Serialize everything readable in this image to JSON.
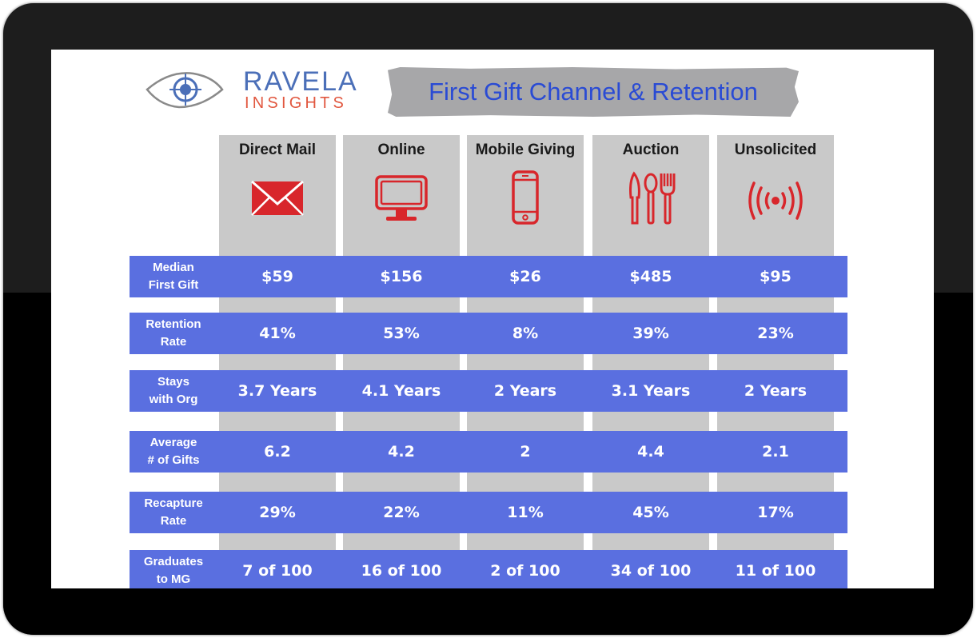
{
  "brand": {
    "line1": "RAVELA",
    "line2": "INSIGHTS"
  },
  "title": "First Gift Channel & Retention",
  "columns": [
    {
      "label": "Direct Mail",
      "icon": "envelope-icon"
    },
    {
      "label": "Online",
      "icon": "monitor-icon"
    },
    {
      "label": "Mobile Giving",
      "icon": "mobile-phone-icon"
    },
    {
      "label": "Auction",
      "icon": "cutlery-icon"
    },
    {
      "label": "Unsolicited",
      "icon": "broadcast-icon"
    }
  ],
  "rows": [
    {
      "label": [
        "Median",
        "First Gift"
      ],
      "values": [
        "$59",
        "$156",
        "$26",
        "$485",
        "$95"
      ]
    },
    {
      "label": [
        "Retention",
        "Rate"
      ],
      "values": [
        "41%",
        "53%",
        "8%",
        "39%",
        "23%"
      ]
    },
    {
      "label": [
        "Stays",
        "with Org"
      ],
      "values": [
        "3.7 Years",
        "4.1 Years",
        "2 Years",
        "3.1 Years",
        "2 Years"
      ]
    },
    {
      "label": [
        "Average",
        "# of Gifts"
      ],
      "values": [
        "6.2",
        "4.2",
        "2",
        "4.4",
        "2.1"
      ]
    },
    {
      "label": [
        "Recapture",
        "Rate"
      ],
      "values": [
        "29%",
        "22%",
        "11%",
        "45%",
        "17%"
      ]
    },
    {
      "label": [
        "Graduates",
        "to MG"
      ],
      "values": [
        "7 of 100",
        "16 of 100",
        "2 of 100",
        "34 of 100",
        "11 of 100"
      ]
    }
  ],
  "colors": {
    "row_fill": "#5a6fe0",
    "column_fill": "#c9c9c9",
    "icon_red": "#d8262b",
    "title_blue": "#2a4bd4",
    "logo_blue": "#4b6fb8",
    "logo_orange": "#e1573f"
  }
}
